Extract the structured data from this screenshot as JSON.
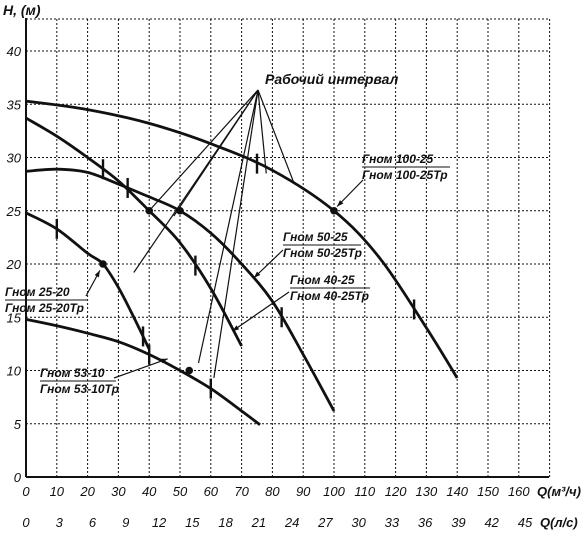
{
  "chart_data": {
    "type": "line",
    "title": "",
    "ylabel": "H, (м)",
    "xlabel": "Q(м³/ч)",
    "x2label": "Q(л/с)",
    "xlim": [
      0,
      170
    ],
    "ylim": [
      0,
      43
    ],
    "grid": true,
    "x_ticks": [
      0,
      10,
      20,
      30,
      40,
      50,
      60,
      70,
      80,
      90,
      100,
      110,
      120,
      130,
      140,
      150,
      160
    ],
    "x_tick_labels": [
      "0",
      "10",
      "20",
      "30",
      "40",
      "50",
      "60",
      "70",
      "80",
      "90",
      "100",
      "110",
      "120",
      "130",
      "140",
      "150",
      "160"
    ],
    "x2_tick_labels": [
      "0",
      "3",
      "6",
      "9",
      "12",
      "15",
      "18",
      "21",
      "24",
      "27",
      "30",
      "33",
      "36",
      "39",
      "42",
      "45"
    ],
    "y_ticks": [
      0,
      5,
      10,
      15,
      20,
      25,
      30,
      35,
      40
    ],
    "y_tick_labels": [
      "0",
      "5",
      "10",
      "15",
      "20",
      "25",
      "30",
      "35",
      "40"
    ],
    "annotation": "Рабочий интервал",
    "series": [
      {
        "id": "gnom-100-25",
        "x": [
          0,
          20,
          40,
          60,
          80,
          100,
          115,
          130,
          140
        ],
        "y": [
          35.3,
          34.5,
          33.2,
          31.3,
          28.8,
          25.0,
          20.5,
          14.0,
          9.3
        ],
        "working_range": [
          75,
          126
        ],
        "marked_point": [
          100,
          25
        ]
      },
      {
        "id": "gnom-50-25",
        "x": [
          0,
          10,
          20,
          30,
          40,
          50,
          60,
          70,
          80,
          90,
          100
        ],
        "y": [
          28.7,
          28.9,
          28.6,
          27.5,
          26.3,
          25.0,
          22.9,
          20.0,
          16.5,
          11.5,
          6.2
        ],
        "working_range": [
          33,
          83
        ],
        "marked_point": [
          50,
          25
        ]
      },
      {
        "id": "gnom-40-25",
        "x": [
          0,
          10,
          20,
          30,
          40,
          50,
          60,
          70
        ],
        "y": [
          33.7,
          32.0,
          30.0,
          27.8,
          25.0,
          22.0,
          17.7,
          12.3
        ],
        "working_range": [
          25,
          55
        ],
        "marked_point": [
          40,
          25
        ]
      },
      {
        "id": "gnom-25-20",
        "x": [
          0,
          10,
          20,
          25,
          30,
          35,
          40
        ],
        "y": [
          24.8,
          23.3,
          21.0,
          20.0,
          17.8,
          15.0,
          12.0
        ],
        "working_range": [
          10,
          38
        ],
        "marked_point": [
          25,
          20
        ]
      },
      {
        "id": "gnom-53-10",
        "x": [
          0,
          10,
          20,
          30,
          40,
          50,
          60,
          70,
          76
        ],
        "y": [
          14.8,
          14.2,
          13.5,
          12.7,
          11.5,
          10.0,
          8.3,
          6.2,
          4.9
        ],
        "working_range": [
          40,
          60
        ],
        "marked_point": [
          53,
          10
        ]
      }
    ],
    "labels": [
      {
        "id": "gnom-100-25",
        "top": "Гном 100-25",
        "bottom": "Гном 100-25Тр"
      },
      {
        "id": "gnom-50-25",
        "top": "Гном 50-25",
        "bottom": "Гном 50-25Тр"
      },
      {
        "id": "gnom-40-25",
        "top": "Гном 40-25",
        "bottom": "Гном 40-25Тр"
      },
      {
        "id": "gnom-25-20",
        "top": "Гном 25-20",
        "bottom": "Гном 25-20Тр"
      },
      {
        "id": "gnom-53-10",
        "top": "Гном 53-10",
        "bottom": "Гном 53-10Тр"
      }
    ]
  }
}
